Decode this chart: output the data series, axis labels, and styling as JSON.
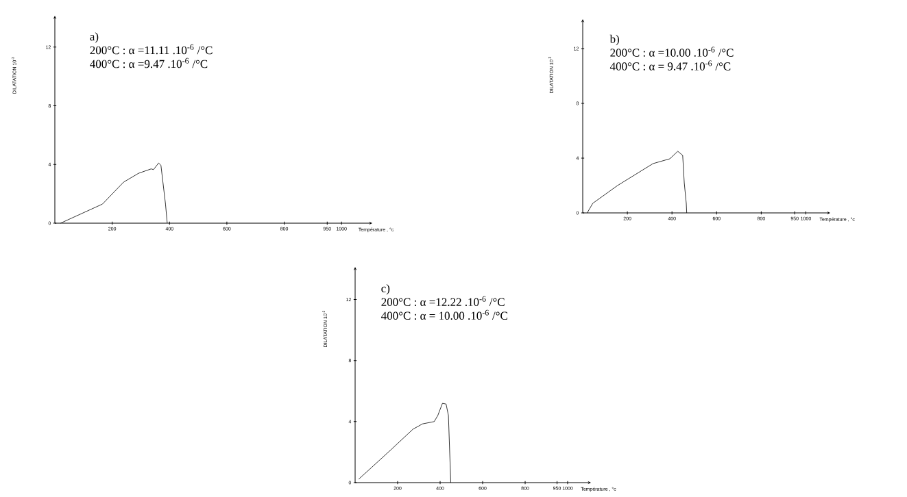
{
  "chart_data": [
    {
      "type": "line",
      "xlabel": "Température , °c",
      "ylabel": "DILATATION 10$^{-3}$",
      "annotations": [
        "a)",
        "200°C : α =11.11 .10$^{-6}$ /°C",
        "400°C : α =9.47  .10$^{-6}$ /°C"
      ],
      "x": [
        20,
        166,
        240,
        292,
        336,
        344,
        362,
        370,
        386,
        392
      ],
      "values": [
        0,
        1.3,
        2.8,
        3.4,
        3.7,
        3.65,
        4.1,
        3.95,
        1.3,
        0
      ],
      "color": "#000000",
      "xlim": [
        0,
        1100
      ],
      "ylim": [
        0,
        14
      ],
      "xticks": [
        200,
        400,
        600,
        800,
        950,
        1000
      ],
      "yticks": [
        0,
        4,
        8,
        12
      ]
    },
    {
      "type": "line",
      "xlabel": "Température , °c",
      "ylabel": "DILATATION 10$^{-3}$",
      "annotations": [
        "b)",
        "200°C : α =10.00 .10$^{-6}$ /°C",
        "400°C : α = 9.47  .10$^{-6}$ /°C"
      ],
      "x": [
        20,
        45,
        156,
        315,
        390,
        426,
        448,
        455,
        464,
        466
      ],
      "values": [
        0,
        0.7,
        2.0,
        3.6,
        3.95,
        4.5,
        4.2,
        2.2,
        0.7,
        0
      ],
      "color": "#000000",
      "xlim": [
        0,
        1100
      ],
      "ylim": [
        0,
        14
      ],
      "xticks": [
        200,
        400,
        600,
        800,
        950,
        1000
      ],
      "yticks": [
        0,
        4,
        8,
        12
      ]
    },
    {
      "type": "line",
      "xlabel": "Température , °c",
      "ylabel": "DILATATION 10$^{-3}$",
      "annotations": [
        "c)",
        "200°C : α =12.22 .10$^{-6}$ /°C",
        "400°C : α = 10.00  .10$^{-6}$ /°C"
      ],
      "x": [
        17,
        78,
        172,
        272,
        317,
        372,
        389,
        411,
        428,
        439,
        450
      ],
      "values": [
        0.23,
        1.0,
        2.2,
        3.5,
        3.85,
        4.0,
        4.4,
        5.2,
        5.15,
        4.4,
        0
      ],
      "color": "#000000",
      "xlim": [
        0,
        1100
      ],
      "ylim": [
        0,
        14
      ],
      "xticks": [
        200,
        400,
        600,
        800,
        950,
        1000
      ],
      "yticks": [
        0,
        4,
        8,
        12
      ]
    }
  ]
}
